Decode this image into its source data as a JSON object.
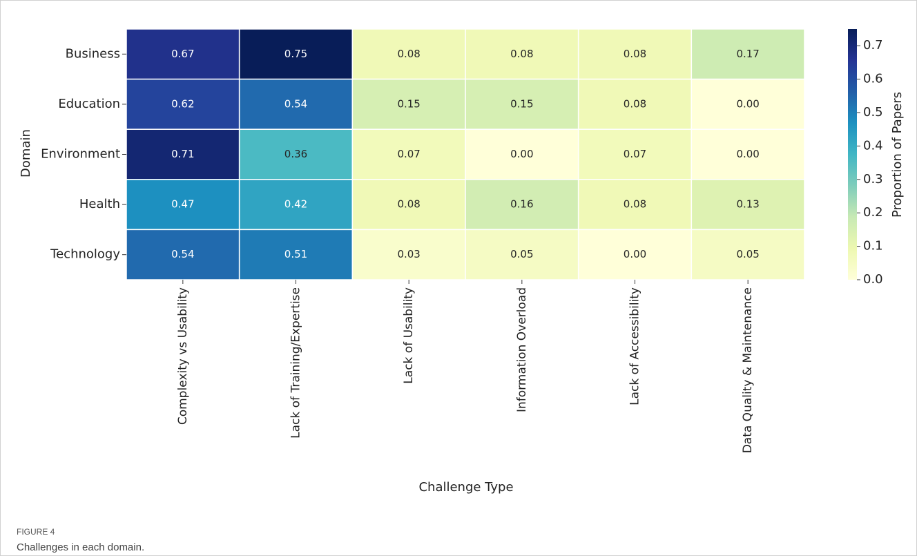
{
  "chart_data": {
    "type": "heatmap",
    "x_label": "Challenge Type",
    "y_label": "Domain",
    "colorbar_label": "Proportion of Papers",
    "figure_label": "FIGURE 4",
    "caption": "Challenges in each domain.",
    "x_categories": [
      "Complexity vs Usability",
      "Lack of Training/Expertise",
      "Lack of Usability",
      "Information Overload",
      "Lack of Accessibility",
      "Data Quality & Maintenance"
    ],
    "y_categories": [
      "Business",
      "Education",
      "Environment",
      "Health",
      "Technology"
    ],
    "values": [
      [
        0.67,
        0.75,
        0.08,
        0.08,
        0.08,
        0.17
      ],
      [
        0.62,
        0.54,
        0.15,
        0.15,
        0.08,
        0
      ],
      [
        0.71,
        0.36,
        0.07,
        0,
        0.07,
        0
      ],
      [
        0.47,
        0.42,
        0.08,
        0.16,
        0.08,
        0.13
      ],
      [
        0.54,
        0.51,
        0.03,
        0.05,
        0,
        0.05
      ]
    ],
    "value_labels": [
      [
        "0.67",
        "0.75",
        "0.08",
        "0.08",
        "0.08",
        "0.17"
      ],
      [
        "0.62",
        "0.54",
        "0.15",
        "0.15",
        "0.08",
        "0.00"
      ],
      [
        "0.71",
        "0.36",
        "0.07",
        "0.00",
        "0.07",
        "0.00"
      ],
      [
        "0.47",
        "0.42",
        "0.08",
        "0.16",
        "0.08",
        "0.13"
      ],
      [
        "0.54",
        "0.51",
        "0.03",
        "0.05",
        "0.00",
        "0.05"
      ]
    ],
    "colormap": "YlGnBu",
    "clim": [
      0,
      0.75
    ],
    "cticks": [
      {
        "value": 0,
        "label": "0.0"
      },
      0.1,
      0.2,
      0.3,
      0.4,
      0.5,
      0.6,
      0.7
    ]
  }
}
